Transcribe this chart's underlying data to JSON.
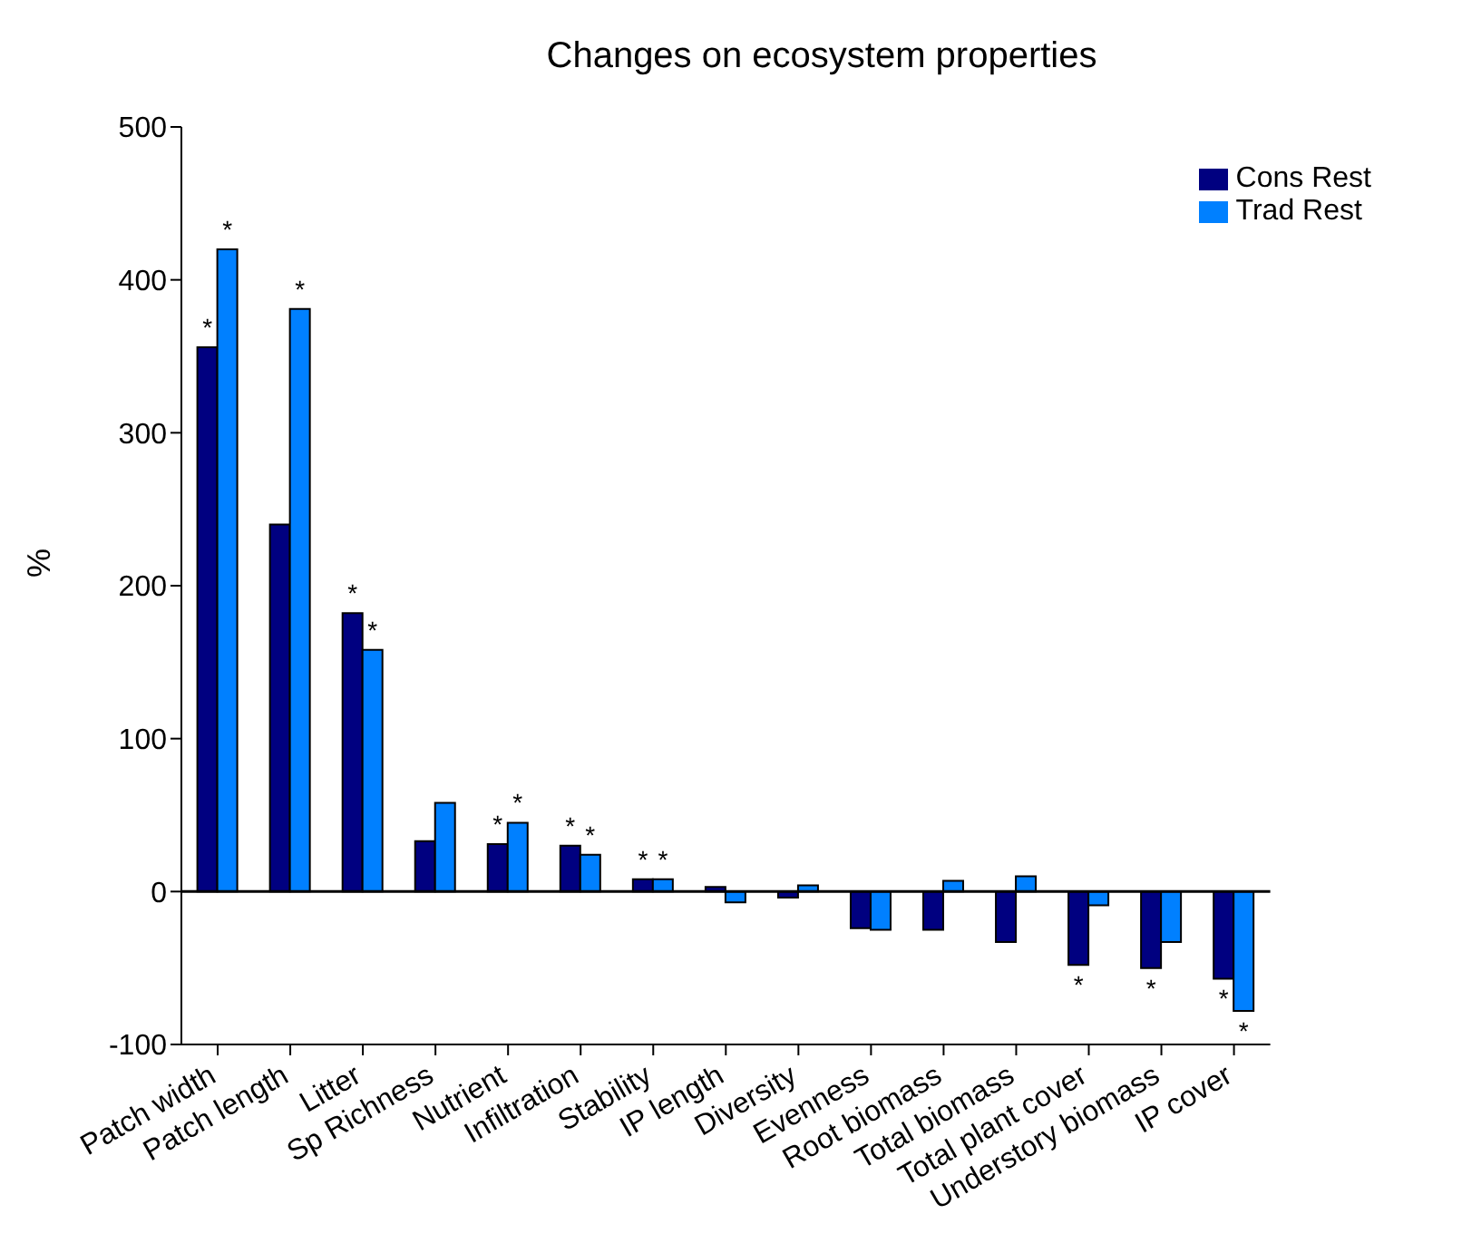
{
  "chart_data": {
    "type": "bar",
    "title": "Changes on ecosystem properties",
    "ylabel": "%",
    "categories": [
      "Patch width",
      "Patch length",
      "Litter",
      "Sp Richness",
      "Nutrient",
      "Infiltration",
      "Stability",
      "IP length",
      "Diversity",
      "Evenness",
      "Root biomass",
      "Total biomass",
      "Total plant cover",
      "Understory biomass",
      "IP cover"
    ],
    "series": [
      {
        "name": "Cons Rest",
        "color": "#000080",
        "values": [
          356,
          240,
          182,
          33,
          31,
          30,
          8,
          3,
          -4,
          -24,
          -25,
          -33,
          -48,
          -50,
          -57
        ]
      },
      {
        "name": "Trad Rest",
        "color": "#0080ff",
        "values": [
          420,
          381,
          158,
          58,
          45,
          24,
          8,
          -7,
          4,
          -25,
          7,
          10,
          -9,
          -33,
          -78
        ]
      }
    ],
    "ylim": [
      -100,
      500
    ],
    "yticks": [
      -100,
      0,
      100,
      200,
      300,
      400,
      500
    ],
    "grid": false,
    "legend": "top right",
    "ref_lines": [
      {
        "axis": "y",
        "value": 0
      }
    ],
    "annotations": [
      {
        "text": "*",
        "x": "Patch width",
        "y": 356
      },
      {
        "text": "*",
        "x": "Patch width",
        "y": 420
      },
      {
        "text": "*",
        "x": "Patch length",
        "y": 381
      },
      {
        "text": "*",
        "x": "Litter",
        "y": 182
      },
      {
        "text": "*",
        "x": "Litter",
        "y": 158
      },
      {
        "text": "*",
        "x": "Nutrient",
        "y": 31
      },
      {
        "text": "*",
        "x": "Nutrient",
        "y": 45
      },
      {
        "text": "*",
        "x": "Infiltration",
        "y": 30
      },
      {
        "text": "*",
        "x": "Infiltration",
        "y": 24
      },
      {
        "text": "*",
        "x": "Stability",
        "y": 8
      },
      {
        "text": "*",
        "x": "Total plant cover",
        "y": -48
      },
      {
        "text": "*",
        "x": "Understory biomass",
        "y": -50
      },
      {
        "text": "*",
        "x": "IP cover",
        "y": -57
      },
      {
        "text": "*",
        "x": "IP cover",
        "y": -78
      }
    ]
  }
}
